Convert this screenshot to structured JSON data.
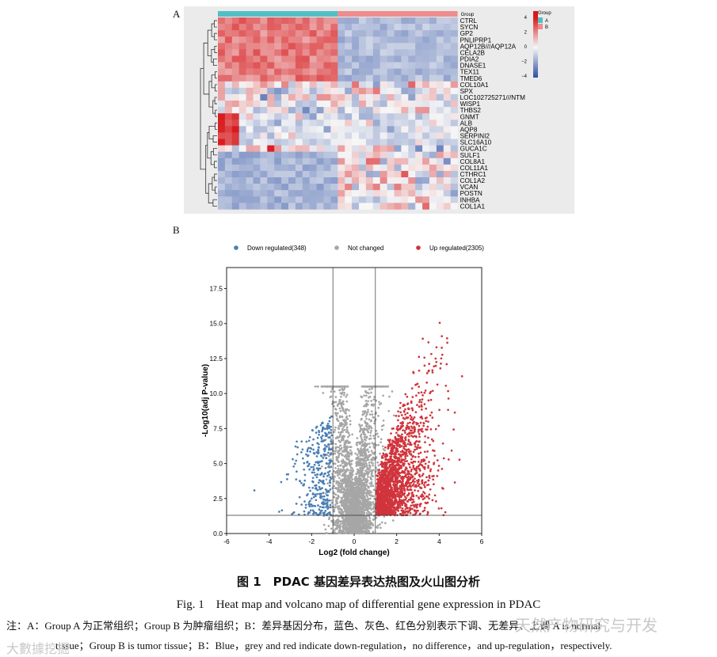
{
  "panelA": {
    "letter": "A"
  },
  "panelB": {
    "letter": "B"
  },
  "heatmap": {
    "genes": [
      "CTRL",
      "SYCN",
      "GP2",
      "PNLIPRP1",
      "AQP12B///AQP12A",
      "CELA2B",
      "PDIA2",
      "DNASE1",
      "TEX11",
      "TMED6",
      "COL10A1",
      "SPX",
      "LOC102725271///NTM",
      "WISP1",
      "THBS2",
      "GNMT",
      "ALB",
      "AQP8",
      "SERPINI2",
      "SLC16A10",
      "GUCA1C",
      "SULF1",
      "COL8A1",
      "COL11A1",
      "CTHRC1",
      "COL1A2",
      "VCAN",
      "POSTN",
      "INHBA",
      "COL1A1"
    ],
    "group_title": "Group",
    "legend": {
      "title": "Group",
      "items": [
        {
          "label": "A",
          "color": "#52bfc6"
        },
        {
          "label": "B",
          "color": "#ee8c8e"
        }
      ]
    },
    "scale_ticks": [
      "4",
      "2",
      "0",
      "−2",
      "−4"
    ],
    "colors": {
      "high": "#d7191c",
      "mid": "#f7f7f7",
      "low": "#2c4ea3",
      "group_a": "#52bfc6",
      "group_b": "#ee8c8e"
    }
  },
  "chart_data": {
    "type": "scatter",
    "title": "",
    "xlabel": "Log2 (fold change)",
    "ylabel": "-Log10(adj P-value)",
    "xlim": [
      -6,
      6
    ],
    "ylim": [
      0,
      19
    ],
    "xticks": [
      "-6",
      "-4",
      "-2",
      "0",
      "2",
      "4",
      "6"
    ],
    "yticks": [
      "0.0",
      "2.5",
      "5.0",
      "7.5",
      "10.0",
      "12.5",
      "15.0",
      "17.5"
    ],
    "thresholds": {
      "x": [
        -1,
        1
      ],
      "y": 1.3
    },
    "legend_position": "top",
    "grid": false,
    "series": [
      {
        "name": "Down regulated(348)",
        "color": "#4a7fb5",
        "count": 348
      },
      {
        "name": "Not changed",
        "color": "#a6a6a6"
      },
      {
        "name": "Up regulated(2305)",
        "color": "#d0343c",
        "count": 2305
      }
    ]
  },
  "caption": {
    "cn": "图 1　PDAC 基因差异表达热图及火山图分析",
    "en": "Fig. 1　Heat map and volcano map of differential gene expression in PDAC"
  },
  "note": {
    "line1": "注：A：Group A 为正常组织；Group B 为肿瘤组织；B：差异基因分布，蓝色、灰色、红色分别表示下调、无差异、上调 A is normal",
    "line2": "tissue；Group B is tumor tissue；B：Blue，grey and red indicate down-regulation，no difference，and up-regulation，respectively."
  },
  "watermark": {
    "right": "天然产物研究与开发",
    "left": "大數據挖掘"
  }
}
